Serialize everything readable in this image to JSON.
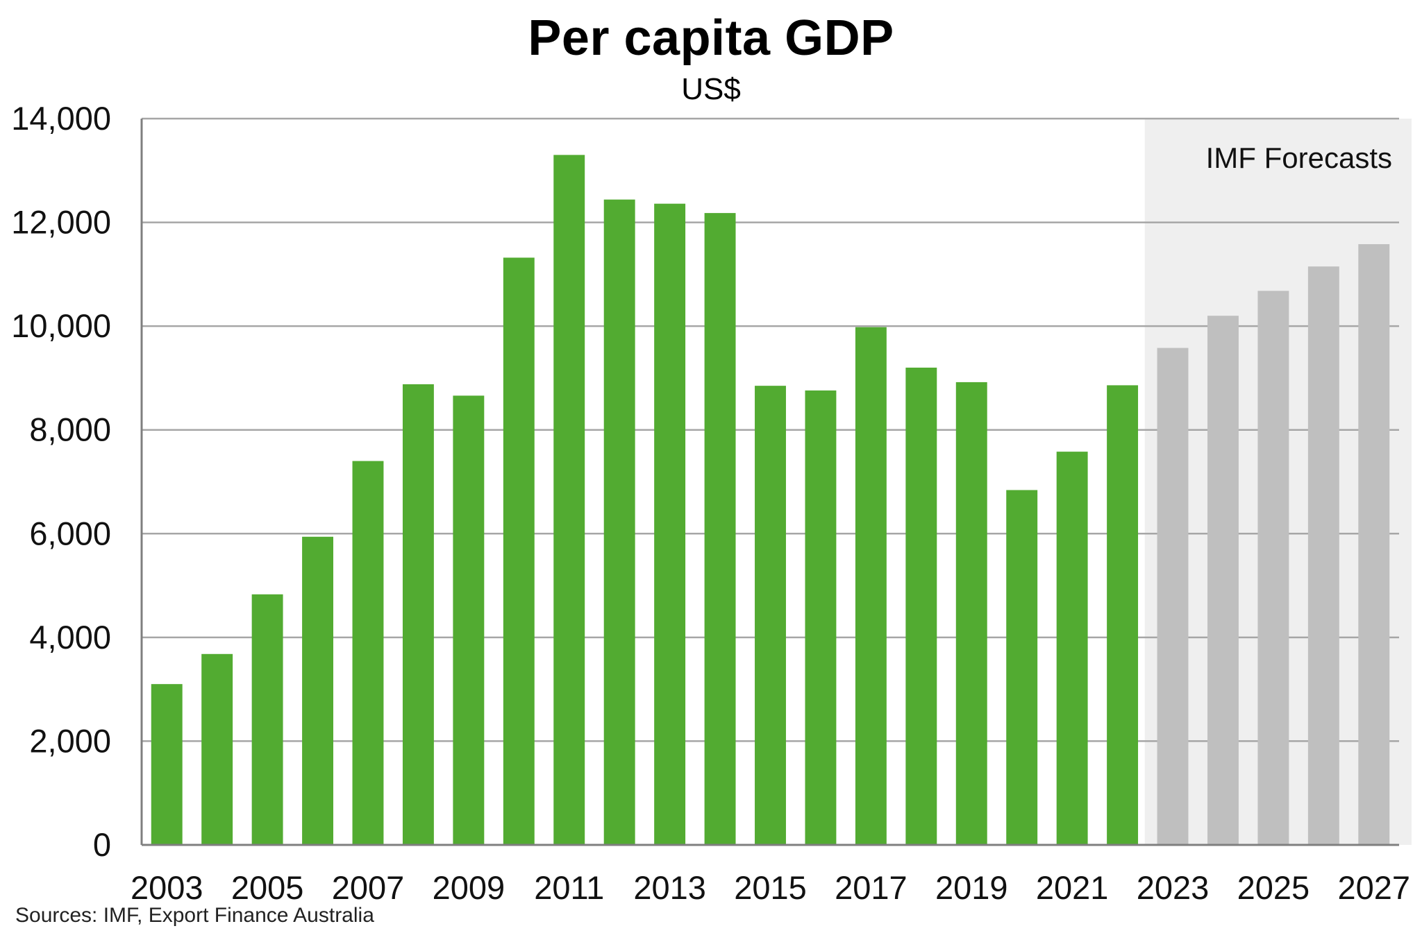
{
  "chart_data": {
    "type": "bar",
    "title": "Per capita GDP",
    "subtitle": "US$",
    "xlabel": "",
    "ylabel": "",
    "ylim": [
      0,
      14000
    ],
    "yticks": [
      0,
      2000,
      4000,
      6000,
      8000,
      10000,
      12000,
      14000
    ],
    "ytick_labels": [
      "0",
      "2,000",
      "4,000",
      "6,000",
      "8,000",
      "10,000",
      "12,000",
      "14,000"
    ],
    "grid": true,
    "categories": [
      "2003",
      "2004",
      "2005",
      "2006",
      "2007",
      "2008",
      "2009",
      "2010",
      "2011",
      "2012",
      "2013",
      "2014",
      "2015",
      "2016",
      "2017",
      "2018",
      "2019",
      "2020",
      "2021",
      "2022",
      "2023",
      "2024",
      "2025",
      "2026",
      "2027"
    ],
    "xtick_labels": [
      "2003",
      "2005",
      "2007",
      "2009",
      "2011",
      "2013",
      "2015",
      "2017",
      "2019",
      "2021",
      "2023",
      "2025",
      "2027"
    ],
    "values": [
      3100,
      3680,
      4830,
      5940,
      7400,
      8880,
      8660,
      11320,
      13300,
      12440,
      12360,
      12180,
      8850,
      8760,
      9980,
      9200,
      8920,
      6840,
      7580,
      8860,
      9580,
      10200,
      10680,
      11150,
      11580
    ],
    "forecast_start_index": 20,
    "forecast_annotation": "IMF Forecasts",
    "colors": {
      "actual": "#52ab31",
      "forecast": "#bfbfbf",
      "forecast_region": "#efefef",
      "grid": "#a6a6a6"
    },
    "source": "Sources: IMF, Export Finance Australia"
  }
}
